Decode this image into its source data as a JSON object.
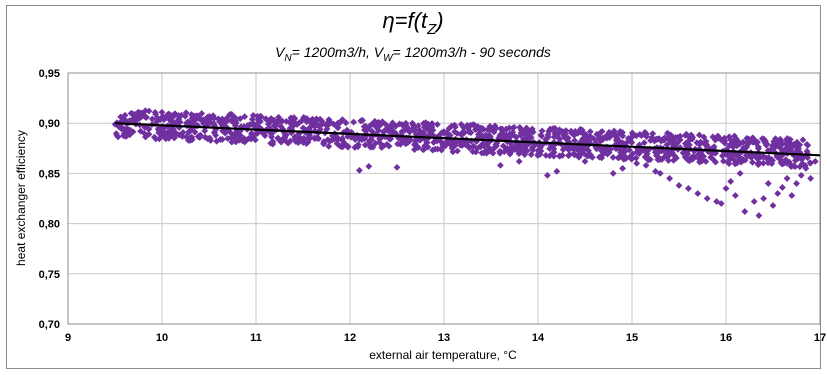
{
  "chart_data": {
    "type": "scatter",
    "title": "η=f(t_Z)",
    "title_parts": {
      "eta": "η=f(t",
      "sub": "Z",
      "close": ")"
    },
    "subtitle": "V_N= 1200m3/h, V_W= 1200m3/h - 90 seconds",
    "subtitle_parts": [
      "V",
      "N",
      "= 1200m3/h, V",
      "W",
      "= 1200m3/h - 90 seconds"
    ],
    "xlabel": "external air temperature, °C",
    "ylabel": "heat exchanger efficiency",
    "xlim": [
      9,
      17
    ],
    "ylim": [
      0.7,
      0.95
    ],
    "x_ticks": [
      "9",
      "10",
      "11",
      "12",
      "13",
      "14",
      "15",
      "16",
      "17"
    ],
    "y_ticks": [
      "0,70",
      "0,75",
      "0,80",
      "0,85",
      "0,90",
      "0,95"
    ],
    "grid": true,
    "marker_color": "#7030a0",
    "trendline_color": "#000000",
    "series": [
      {
        "marker": "diamond",
        "bands": [
          {
            "x_from": 9.5,
            "x_to": 16.9,
            "y_center_start": 0.9,
            "y_center_end": 0.87,
            "spread": 0.014
          }
        ],
        "points": [
          [
            15.3,
            0.85
          ],
          [
            15.4,
            0.845
          ],
          [
            15.5,
            0.838
          ],
          [
            15.6,
            0.835
          ],
          [
            15.7,
            0.83
          ],
          [
            15.8,
            0.825
          ],
          [
            15.9,
            0.822
          ],
          [
            15.95,
            0.82
          ],
          [
            16.0,
            0.835
          ],
          [
            16.1,
            0.828
          ],
          [
            16.2,
            0.812
          ],
          [
            16.3,
            0.822
          ],
          [
            16.35,
            0.808
          ],
          [
            16.4,
            0.825
          ],
          [
            16.5,
            0.818
          ],
          [
            16.55,
            0.83
          ],
          [
            16.6,
            0.836
          ],
          [
            16.7,
            0.828
          ],
          [
            16.75,
            0.84
          ],
          [
            16.8,
            0.848
          ],
          [
            16.85,
            0.855
          ],
          [
            16.9,
            0.845
          ],
          [
            15.15,
            0.858
          ],
          [
            15.25,
            0.852
          ],
          [
            14.9,
            0.855
          ],
          [
            14.8,
            0.85
          ],
          [
            14.1,
            0.848
          ],
          [
            14.2,
            0.852
          ],
          [
            12.1,
            0.853
          ],
          [
            12.2,
            0.857
          ],
          [
            12.5,
            0.856
          ],
          [
            13.6,
            0.858
          ],
          [
            13.8,
            0.862
          ],
          [
            16.05,
            0.842
          ],
          [
            16.15,
            0.85
          ],
          [
            16.45,
            0.84
          ],
          [
            16.65,
            0.845
          ],
          [
            16.95,
            0.862
          ],
          [
            15.05,
            0.86
          ],
          [
            14.5,
            0.862
          ]
        ]
      }
    ],
    "trendline": {
      "x": [
        9.5,
        17.0
      ],
      "y": [
        0.9,
        0.868
      ]
    }
  }
}
